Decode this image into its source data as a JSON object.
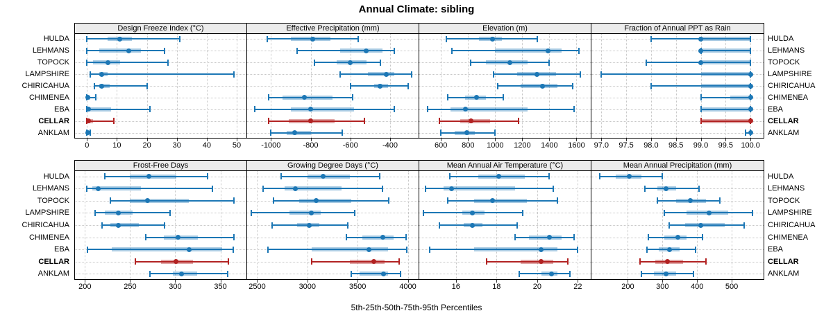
{
  "title": "Annual Climate: sibling",
  "caption": "5th-25th-50th-75th-95th Percentiles",
  "percentile_labels": [
    "5th",
    "25th",
    "50th",
    "75th",
    "95th"
  ],
  "sites": [
    "HULDA",
    "LEHMANS",
    "TOPOCK",
    "LAMPSHIRE",
    "CHIRICAHUA",
    "CHIMENEA",
    "EBA",
    "CELLAR",
    "ANKLAM"
  ],
  "highlight_site": "CELLAR",
  "colors": {
    "series": "#1c77b5",
    "series_band": "rgba(28,119,181,0.38)",
    "highlight": "#b22222",
    "highlight_band": "rgba(178,34,34,0.40)",
    "strip_bg": "#ececec",
    "grid": "#c6c6c6",
    "border": "#000000"
  },
  "chart_data": [
    {
      "type": "dot-interval",
      "title": "Design Freeze Index (°C)",
      "range": [
        -4,
        53
      ],
      "ticks": [
        0,
        10,
        20,
        30,
        40,
        50
      ],
      "tick_labels": [
        "0",
        "10",
        "20",
        "30",
        "40",
        "50"
      ],
      "rows": [
        {
          "site": "HULDA",
          "values": [
            0,
            7,
            11,
            15,
            31
          ]
        },
        {
          "site": "LEHMANS",
          "values": [
            0,
            4,
            14,
            18,
            26
          ]
        },
        {
          "site": "TOPOCK",
          "values": [
            0,
            2,
            7,
            11,
            27
          ]
        },
        {
          "site": "LAMPSHIRE",
          "values": [
            1,
            4,
            5,
            7,
            49
          ]
        },
        {
          "site": "CHIRICAHUA",
          "values": [
            2.5,
            4,
            5,
            7.5,
            20
          ]
        },
        {
          "site": "CHIMENEA",
          "values": [
            0,
            0.1,
            0.3,
            1,
            3
          ]
        },
        {
          "site": "EBA",
          "values": [
            0,
            0.3,
            0.5,
            8,
            21
          ]
        },
        {
          "site": "CELLAR",
          "values": [
            0,
            0.2,
            0.5,
            2,
            9
          ]
        },
        {
          "site": "ANKLAM",
          "values": [
            0,
            0.1,
            0.2,
            0.5,
            1.2
          ]
        }
      ]
    },
    {
      "type": "dot-interval",
      "title": "Effective Precipitation (mm)",
      "range": [
        -1120,
        -260
      ],
      "ticks": [
        -1000,
        -800,
        -600,
        -400
      ],
      "tick_labels": [
        "-1000",
        "-800",
        "-600",
        "-400"
      ],
      "rows": [
        {
          "site": "HULDA",
          "values": [
            -1020,
            -900,
            -790,
            -700,
            -560
          ]
        },
        {
          "site": "LEHMANS",
          "values": [
            -870,
            -650,
            -520,
            -440,
            -380
          ]
        },
        {
          "site": "TOPOCK",
          "values": [
            -780,
            -670,
            -600,
            -520,
            -450
          ]
        },
        {
          "site": "LAMPSHIRE",
          "values": [
            -650,
            -510,
            -420,
            -380,
            -290
          ]
        },
        {
          "site": "CHIRICAHUA",
          "values": [
            -600,
            -480,
            -450,
            -410,
            -310
          ]
        },
        {
          "site": "CHIMENEA",
          "values": [
            -1010,
            -940,
            -830,
            -690,
            -590
          ]
        },
        {
          "site": "EBA",
          "values": [
            -1080,
            -900,
            -800,
            -580,
            -380
          ]
        },
        {
          "site": "CELLAR",
          "values": [
            -1010,
            -910,
            -800,
            -680,
            -530
          ]
        },
        {
          "site": "ANKLAM",
          "values": [
            -1000,
            -920,
            -880,
            -800,
            -640
          ]
        }
      ]
    },
    {
      "type": "dot-interval",
      "title": "Elevation (m)",
      "range": [
        440,
        1700
      ],
      "ticks": [
        600,
        800,
        1000,
        1200,
        1400,
        1600
      ],
      "tick_labels": [
        "600",
        "800",
        "1000",
        "1200",
        "1400",
        "1600"
      ],
      "rows": [
        {
          "site": "HULDA",
          "values": [
            640,
            880,
            980,
            1050,
            1310
          ]
        },
        {
          "site": "LEHMANS",
          "values": [
            680,
            1000,
            1390,
            1490,
            1620
          ]
        },
        {
          "site": "TOPOCK",
          "values": [
            820,
            930,
            1110,
            1240,
            1400
          ]
        },
        {
          "site": "LAMPSHIRE",
          "values": [
            990,
            1160,
            1310,
            1450,
            1630
          ]
        },
        {
          "site": "CHIRICAHUA",
          "values": [
            1020,
            1190,
            1350,
            1460,
            1570
          ]
        },
        {
          "site": "CHIMENEA",
          "values": [
            650,
            780,
            860,
            930,
            1060
          ]
        },
        {
          "site": "EBA",
          "values": [
            500,
            670,
            780,
            1240,
            1580
          ]
        },
        {
          "site": "CELLAR",
          "values": [
            590,
            740,
            820,
            960,
            1170
          ]
        },
        {
          "site": "ANKLAM",
          "values": [
            600,
            700,
            790,
            850,
            1000
          ]
        }
      ]
    },
    {
      "type": "dot-interval",
      "title": "Fraction of Annual PPT as Rain",
      "range": [
        96.8,
        100.25
      ],
      "ticks": [
        97.0,
        97.5,
        98.0,
        98.5,
        99.0,
        99.5,
        100.0
      ],
      "tick_labels": [
        "97.0",
        "97.5",
        "98.0",
        "98.5",
        "99.0",
        "99.5",
        "100.0"
      ],
      "rows": [
        {
          "site": "HULDA",
          "values": [
            98.0,
            99.0,
            99.0,
            100.0,
            100.0
          ]
        },
        {
          "site": "LEHMANS",
          "values": [
            99.0,
            99.0,
            99.0,
            100.0,
            100.0
          ]
        },
        {
          "site": "TOPOCK",
          "values": [
            97.9,
            99.0,
            99.0,
            100.0,
            100.0
          ]
        },
        {
          "site": "LAMPSHIRE",
          "values": [
            97.0,
            99.0,
            100.0,
            100.0,
            100.0
          ]
        },
        {
          "site": "CHIRICAHUA",
          "values": [
            98.0,
            99.0,
            100.0,
            100.0,
            100.0
          ]
        },
        {
          "site": "CHIMENEA",
          "values": [
            99.0,
            99.6,
            100.0,
            100.0,
            100.0
          ]
        },
        {
          "site": "EBA",
          "values": [
            99.0,
            99.0,
            100.0,
            100.0,
            100.0
          ]
        },
        {
          "site": "CELLAR",
          "values": [
            99.0,
            99.0,
            100.0,
            100.0,
            100.0
          ]
        },
        {
          "site": "ANKLAM",
          "values": [
            99.9,
            100.0,
            100.0,
            100.0,
            100.0
          ]
        }
      ]
    },
    {
      "type": "dot-interval",
      "title": "Frost-Free Days",
      "range": [
        189,
        378
      ],
      "ticks": [
        200,
        250,
        300,
        350
      ],
      "tick_labels": [
        "200",
        "250",
        "300",
        "350"
      ],
      "rows": [
        {
          "site": "HULDA",
          "values": [
            222,
            250,
            271,
            301,
            336
          ]
        },
        {
          "site": "LEHMANS",
          "values": [
            202,
            208,
            215,
            262,
            341
          ]
        },
        {
          "site": "TOPOCK",
          "values": [
            228,
            250,
            269,
            315,
            365
          ]
        },
        {
          "site": "LAMPSHIRE",
          "values": [
            211,
            222,
            237,
            253,
            294
          ]
        },
        {
          "site": "CHIRICAHUA",
          "values": [
            219,
            228,
            237,
            260,
            288
          ]
        },
        {
          "site": "CHIMENEA",
          "values": [
            267,
            287,
            303,
            325,
            365
          ]
        },
        {
          "site": "EBA",
          "values": [
            203,
            230,
            315,
            352,
            364
          ]
        },
        {
          "site": "CELLAR",
          "values": [
            256,
            284,
            301,
            320,
            359
          ]
        },
        {
          "site": "ANKLAM",
          "values": [
            272,
            297,
            307,
            324,
            358
          ]
        }
      ]
    },
    {
      "type": "dot-interval",
      "title": "Growing Degree Days (°C)",
      "range": [
        2400,
        4100
      ],
      "ticks": [
        2500,
        3000,
        3500,
        4000
      ],
      "tick_labels": [
        "2500",
        "3000",
        "3500",
        "4000"
      ],
      "rows": [
        {
          "site": "HULDA",
          "values": [
            2740,
            3000,
            3160,
            3420,
            3720
          ]
        },
        {
          "site": "LEHMANS",
          "values": [
            2560,
            2770,
            2880,
            3340,
            3750
          ]
        },
        {
          "site": "TOPOCK",
          "values": [
            2660,
            2920,
            3090,
            3440,
            3810
          ]
        },
        {
          "site": "LAMPSHIRE",
          "values": [
            2440,
            2820,
            3040,
            3130,
            3470
          ]
        },
        {
          "site": "CHIRICAHUA",
          "values": [
            2650,
            2900,
            3020,
            3120,
            3400
          ]
        },
        {
          "site": "CHIMENEA",
          "values": [
            3390,
            3550,
            3750,
            3860,
            3980
          ]
        },
        {
          "site": "EBA",
          "values": [
            2610,
            3040,
            3610,
            3800,
            3990
          ]
        },
        {
          "site": "CELLAR",
          "values": [
            3040,
            3420,
            3660,
            3770,
            3910
          ]
        },
        {
          "site": "ANKLAM",
          "values": [
            3440,
            3520,
            3760,
            3800,
            3930
          ]
        }
      ]
    },
    {
      "type": "dot-interval",
      "title": "Mean Annual Air Temperature (°C)",
      "range": [
        14.2,
        22.6
      ],
      "ticks": [
        16,
        18,
        20,
        22
      ],
      "tick_labels": [
        "16",
        "18",
        "20",
        "22"
      ],
      "rows": [
        {
          "site": "HULDA",
          "values": [
            15.7,
            17.1,
            18.1,
            19.4,
            20.6
          ]
        },
        {
          "site": "LEHMANS",
          "values": [
            14.5,
            15.4,
            15.8,
            18.9,
            20.8
          ]
        },
        {
          "site": "TOPOCK",
          "values": [
            15.6,
            16.9,
            17.8,
            19.5,
            21.0
          ]
        },
        {
          "site": "LAMPSHIRE",
          "values": [
            14.4,
            16.3,
            16.8,
            17.4,
            19.3
          ]
        },
        {
          "site": "CHIRICAHUA",
          "values": [
            15.2,
            16.4,
            16.8,
            17.3,
            19.0
          ]
        },
        {
          "site": "CHIMENEA",
          "values": [
            18.9,
            19.6,
            20.6,
            21.2,
            21.8
          ]
        },
        {
          "site": "EBA",
          "values": [
            14.7,
            16.9,
            20.2,
            21.0,
            22.0
          ]
        },
        {
          "site": "CELLAR",
          "values": [
            17.5,
            19.2,
            20.2,
            20.8,
            21.5
          ]
        },
        {
          "site": "ANKLAM",
          "values": [
            19.1,
            20.2,
            20.7,
            21.0,
            21.6
          ]
        }
      ]
    },
    {
      "type": "dot-interval",
      "title": "Mean Annual Precipitation (mm)",
      "range": [
        95,
        590
      ],
      "ticks": [
        200,
        300,
        400,
        500
      ],
      "tick_labels": [
        "200",
        "300",
        "400",
        "500"
      ],
      "rows": [
        {
          "site": "HULDA",
          "values": [
            120,
            165,
            205,
            240,
            300
          ]
        },
        {
          "site": "LEHMANS",
          "values": [
            250,
            285,
            310,
            340,
            405
          ]
        },
        {
          "site": "TOPOCK",
          "values": [
            285,
            340,
            380,
            425,
            465
          ]
        },
        {
          "site": "LAMPSHIRE",
          "values": [
            305,
            370,
            435,
            490,
            560
          ]
        },
        {
          "site": "CHIRICAHUA",
          "values": [
            320,
            365,
            410,
            480,
            535
          ]
        },
        {
          "site": "CHIMENEA",
          "values": [
            260,
            305,
            345,
            370,
            415
          ]
        },
        {
          "site": "EBA",
          "values": [
            255,
            290,
            320,
            350,
            395
          ]
        },
        {
          "site": "CELLAR",
          "values": [
            235,
            280,
            315,
            360,
            425
          ]
        },
        {
          "site": "ANKLAM",
          "values": [
            240,
            275,
            310,
            340,
            390
          ]
        }
      ]
    }
  ]
}
